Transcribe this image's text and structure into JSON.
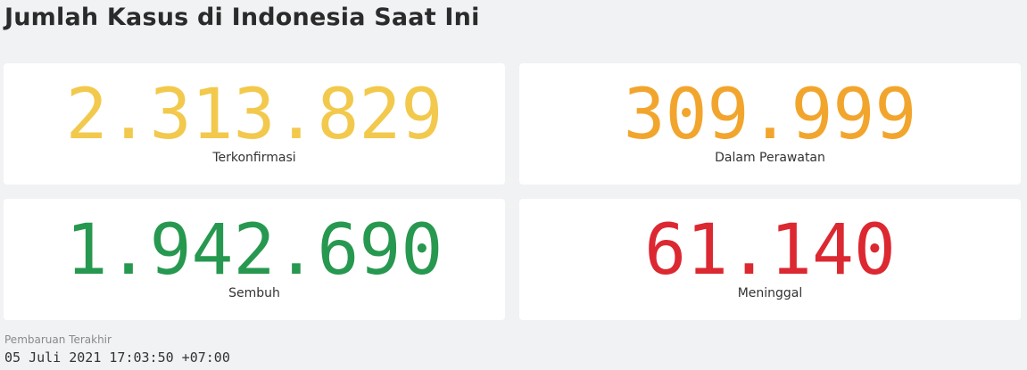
{
  "header": {
    "title": "Jumlah Kasus di Indonesia Saat Ini"
  },
  "stats": [
    {
      "value": "2.313.829",
      "label": "Terkonfirmasi",
      "color": "#f2c94c"
    },
    {
      "value": "309.999",
      "label": "Dalam Perawatan",
      "color": "#f2a52d"
    },
    {
      "value": "1.942.690",
      "label": "Sembuh",
      "color": "#27984f"
    },
    {
      "value": "61.140",
      "label": "Meninggal",
      "color": "#dc2831"
    }
  ],
  "footer": {
    "updated_label": "Pembaruan Terakhir",
    "updated_value": "05 Juli 2021 17:03:50 +07:00"
  }
}
